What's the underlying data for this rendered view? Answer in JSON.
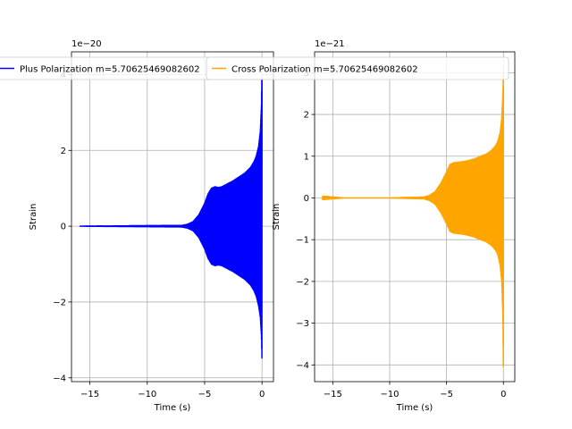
{
  "chart_data": [
    {
      "type": "line",
      "title": "",
      "xlabel": "Time (s)",
      "ylabel": "Strain",
      "offset_label": "1e−20",
      "xlim": [
        -16.6,
        1.0
      ],
      "ylim": [
        -4.1,
        4.6
      ],
      "xticks": [
        -15,
        -10,
        -5,
        0
      ],
      "xtick_labels": [
        "−15",
        "−10",
        "−5",
        "0"
      ],
      "yticks": [
        -4,
        -2,
        0,
        2,
        4
      ],
      "ytick_labels": [
        "−4",
        "−2",
        "0",
        "2",
        "4"
      ],
      "grid": true,
      "legend": {
        "position": "top",
        "entries": [
          "Plus Polarization m=5.70625469082602"
        ]
      },
      "series": [
        {
          "name": "Plus Polarization m=5.70625469082602",
          "color": "#0000ff",
          "envelope_x": [
            -15.9,
            -7.0,
            -6.5,
            -6.0,
            -5.5,
            -5.0,
            -4.7,
            -4.4,
            -4.1,
            -3.8,
            -3.5,
            -3.0,
            -2.5,
            -2.0,
            -1.5,
            -1.0,
            -0.7,
            -0.5,
            -0.3,
            -0.15,
            -0.05,
            0.0
          ],
          "envelope_upper": [
            0.0,
            0.02,
            0.05,
            0.12,
            0.3,
            0.6,
            0.85,
            1.0,
            1.04,
            1.02,
            1.04,
            1.12,
            1.2,
            1.3,
            1.4,
            1.55,
            1.7,
            1.85,
            2.1,
            2.5,
            3.2,
            4.4
          ],
          "envelope_lower": [
            0.0,
            -0.02,
            -0.05,
            -0.12,
            -0.3,
            -0.6,
            -0.85,
            -1.0,
            -1.04,
            -1.02,
            -1.04,
            -1.12,
            -1.2,
            -1.3,
            -1.4,
            -1.55,
            -1.7,
            -1.85,
            -2.1,
            -2.4,
            -2.9,
            -3.6
          ]
        }
      ]
    },
    {
      "type": "line",
      "title": "",
      "xlabel": "Time (s)",
      "ylabel": "Strain",
      "offset_label": "1e−21",
      "xlim": [
        -16.6,
        1.0
      ],
      "ylim": [
        -4.4,
        3.5
      ],
      "xticks": [
        -15,
        -10,
        -5,
        0
      ],
      "xtick_labels": [
        "−15",
        "−10",
        "−5",
        "0"
      ],
      "yticks": [
        -4,
        -3,
        -2,
        -1,
        0,
        1,
        2,
        3
      ],
      "ytick_labels": [
        "−4",
        "−3",
        "−2",
        "−1",
        "0",
        "1",
        "2",
        "3"
      ],
      "grid": true,
      "legend": {
        "position": "top",
        "entries": [
          "Cross Polarization m=5.70625469082602"
        ]
      },
      "series": [
        {
          "name": "Cross Polarization m=5.70625469082602",
          "color": "#ffa500",
          "envelope_x": [
            -15.9,
            -15.0,
            -14.0,
            -10.0,
            -7.0,
            -6.5,
            -6.0,
            -5.5,
            -5.0,
            -4.7,
            -4.4,
            -4.1,
            -3.8,
            -3.5,
            -3.0,
            -2.5,
            -2.0,
            -1.5,
            -1.0,
            -0.7,
            -0.5,
            -0.3,
            -0.15,
            -0.05,
            0.0
          ],
          "envelope_upper": [
            0.04,
            0.02,
            0.0,
            0.0,
            0.02,
            0.06,
            0.15,
            0.35,
            0.62,
            0.8,
            0.84,
            0.85,
            0.86,
            0.87,
            0.9,
            0.94,
            1.0,
            1.05,
            1.15,
            1.25,
            1.35,
            1.55,
            1.9,
            2.5,
            3.0
          ],
          "envelope_lower": [
            -0.04,
            -0.02,
            0.0,
            0.0,
            -0.02,
            -0.06,
            -0.15,
            -0.35,
            -0.62,
            -0.8,
            -0.84,
            -0.85,
            -0.86,
            -0.87,
            -0.9,
            -0.94,
            -1.0,
            -1.05,
            -1.15,
            -1.25,
            -1.35,
            -1.6,
            -2.0,
            -2.8,
            -4.3
          ]
        }
      ]
    }
  ]
}
